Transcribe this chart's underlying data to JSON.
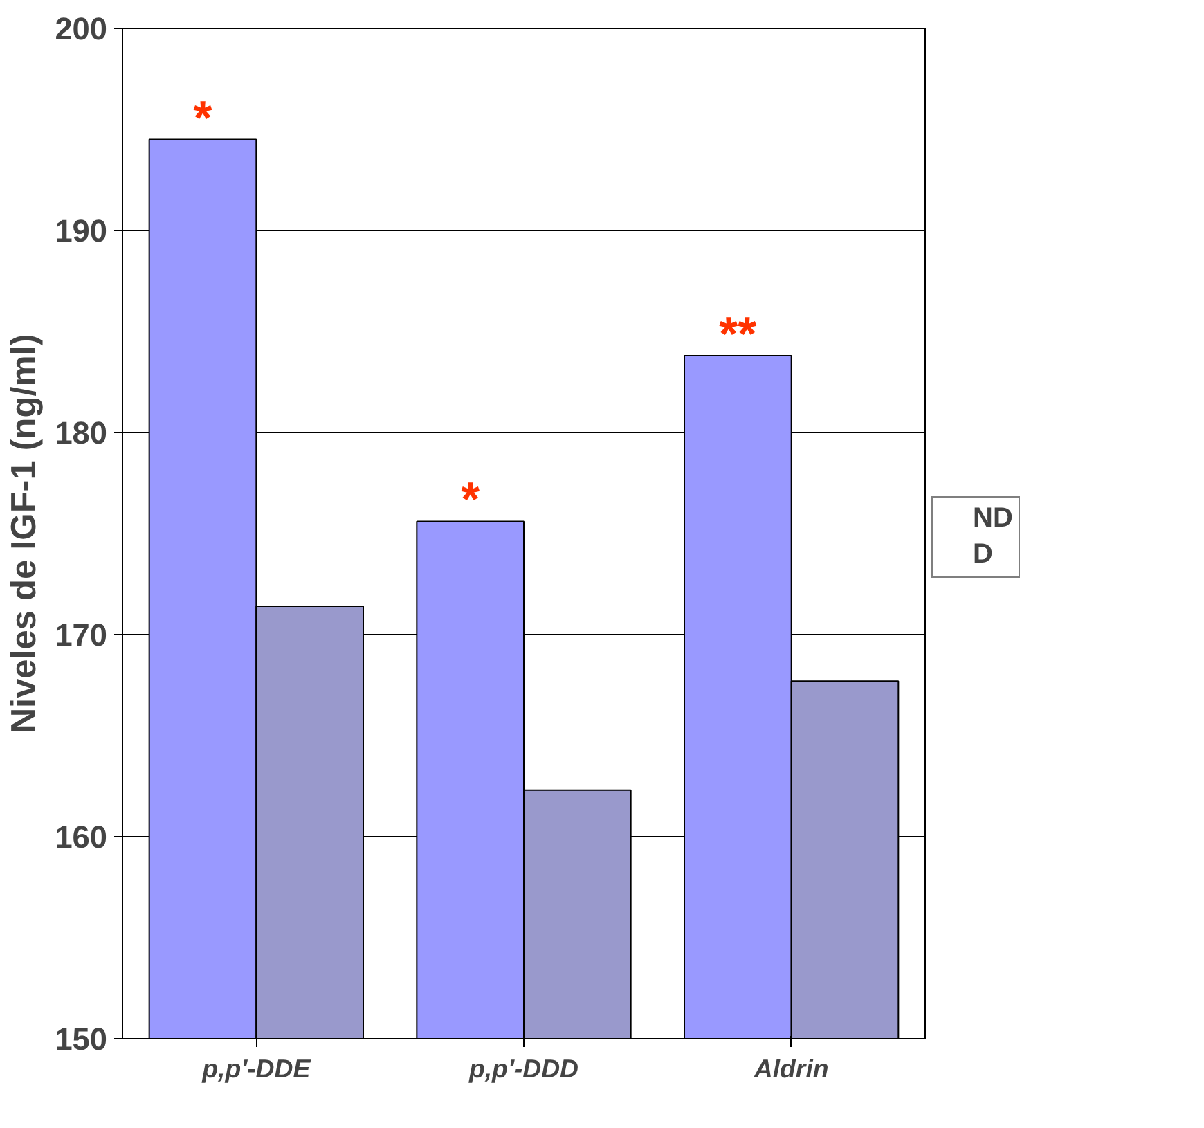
{
  "chart_data": {
    "type": "bar",
    "ylabel": "Niveles de IGF-1 (ng/ml)",
    "categories": [
      "p,p'-DDE",
      "p,p'-DDD",
      "Aldrin"
    ],
    "series": [
      {
        "name": "ND",
        "color": "#9999ff",
        "values": [
          194.5,
          175.6,
          183.8
        ]
      },
      {
        "name": "D",
        "color": "#9999cc",
        "values": [
          171.4,
          162.3,
          167.7
        ]
      }
    ],
    "ylim": [
      150,
      200
    ],
    "yticks": [
      150,
      160,
      170,
      180,
      190,
      200
    ],
    "grid": "y",
    "legend": "right",
    "annotations": [
      {
        "text": "*",
        "x": "p,p'-DDE",
        "y": 194.5
      },
      {
        "text": "*",
        "x": "p,p'-DDD",
        "y": 175.6
      },
      {
        "text": "**",
        "x": "Aldrin",
        "y": 183.8
      }
    ]
  }
}
